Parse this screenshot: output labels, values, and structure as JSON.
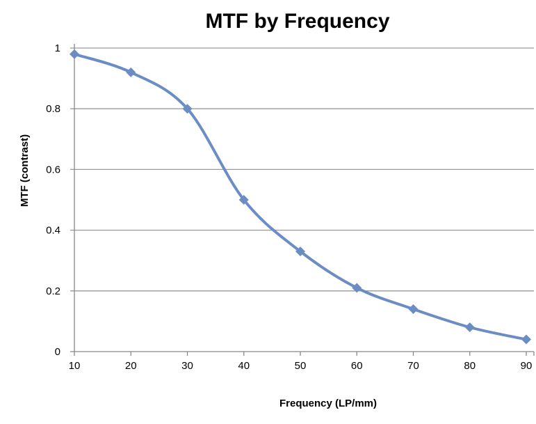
{
  "chart_data": {
    "type": "line",
    "title": "MTF by Frequency",
    "xlabel": "Frequency (LP/mm)",
    "ylabel": "MTF (contrast)",
    "x": [
      10,
      20,
      30,
      40,
      50,
      60,
      70,
      80,
      90
    ],
    "series": [
      {
        "name": "MTF",
        "values": [
          0.98,
          0.92,
          0.8,
          0.5,
          0.33,
          0.21,
          0.14,
          0.08,
          0.04
        ],
        "color": "#6B8DC4",
        "marker": "diamond",
        "smooth": true
      }
    ],
    "xlim": [
      10,
      90
    ],
    "ylim": [
      0,
      1
    ],
    "xticks": [
      "10",
      "20",
      "30",
      "40",
      "50",
      "60",
      "70",
      "80",
      "90"
    ],
    "yticks": [
      "0",
      "0.2",
      "0.4",
      "0.6",
      "0.8",
      "1"
    ],
    "grid": "horizontal",
    "legend": "none"
  }
}
